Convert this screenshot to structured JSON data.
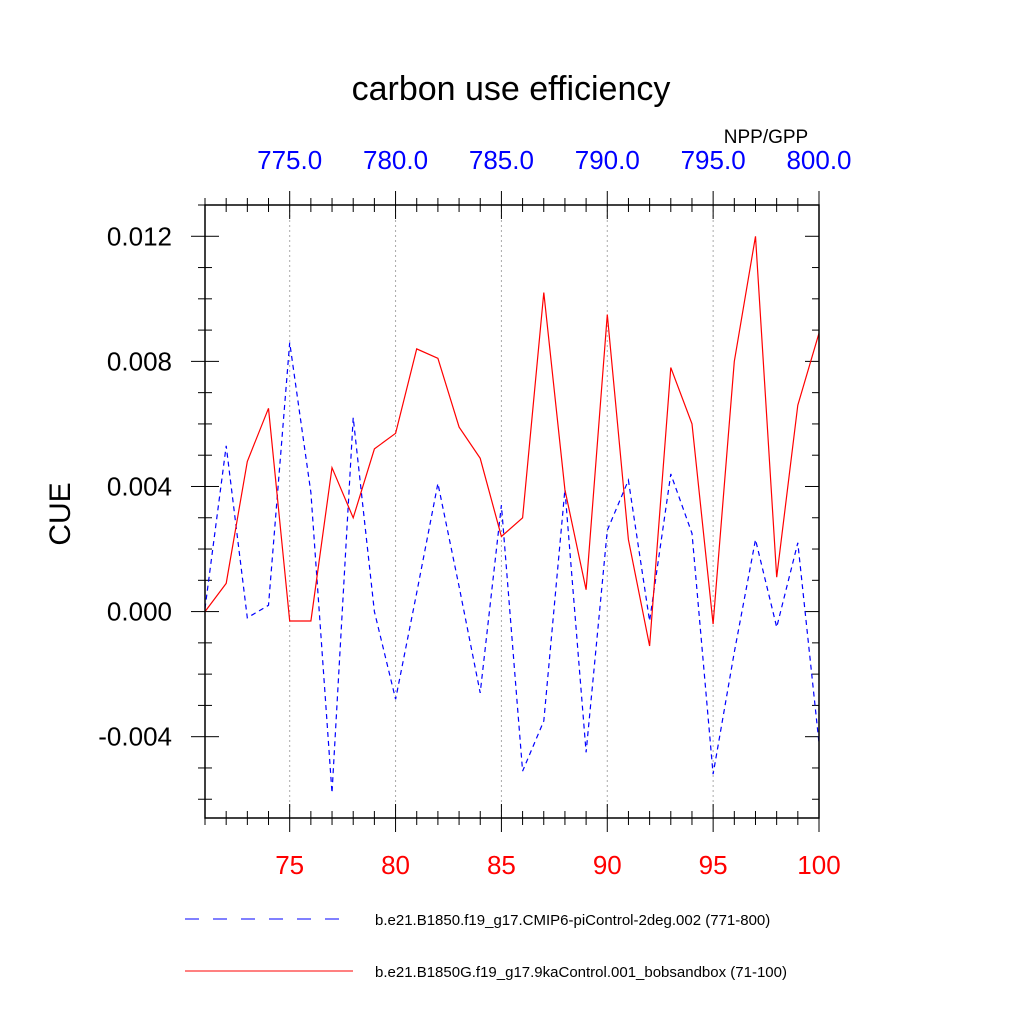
{
  "chart_data": {
    "type": "line",
    "title": "carbon use efficiency",
    "subtitle": "NPP/GPP",
    "ylabel": "CUE",
    "ylim": [
      -0.0066,
      0.013
    ],
    "y_ticks": [
      {
        "value": 0.012,
        "label": "0.012"
      },
      {
        "value": 0.008,
        "label": "0.008"
      },
      {
        "value": 0.004,
        "label": "0.004"
      },
      {
        "value": 0.0,
        "label": "0.000"
      },
      {
        "value": -0.004,
        "label": "-0.004"
      }
    ],
    "y_minor_step": 0.001,
    "x_bottom": {
      "range": [
        71,
        100
      ],
      "ticks": [
        {
          "value": 75,
          "label": "75"
        },
        {
          "value": 80,
          "label": "80"
        },
        {
          "value": 85,
          "label": "85"
        },
        {
          "value": 90,
          "label": "90"
        },
        {
          "value": 95,
          "label": "95"
        },
        {
          "value": 100,
          "label": "100"
        }
      ],
      "color": "#ff0000"
    },
    "x_top": {
      "range": [
        771,
        800
      ],
      "ticks": [
        {
          "value": 775,
          "label": "775.0"
        },
        {
          "value": 780,
          "label": "780.0"
        },
        {
          "value": 785,
          "label": "785.0"
        },
        {
          "value": 790,
          "label": "790.0"
        },
        {
          "value": 795,
          "label": "795.0"
        },
        {
          "value": 800,
          "label": "800.0"
        }
      ],
      "color": "#0000ff"
    },
    "series": [
      {
        "name": "b.e21.B1850.f19_g17.CMIP6-piControl-2deg.002 (771-800)",
        "color": "#0000ff",
        "dash": "dashed",
        "axis": "top",
        "x": [
          771,
          772,
          773,
          774,
          775,
          776,
          777,
          778,
          779,
          780,
          781,
          782,
          783,
          784,
          785,
          786,
          787,
          788,
          789,
          790,
          791,
          792,
          793,
          794,
          795,
          796,
          797,
          798,
          799,
          800
        ],
        "values": [
          0.0001,
          0.0053,
          -0.0002,
          0.0002,
          0.0086,
          0.0038,
          -0.0058,
          0.0062,
          0.0,
          -0.0028,
          0.0006,
          0.0041,
          0.0008,
          -0.0026,
          0.0034,
          -0.0051,
          -0.0035,
          0.0039,
          -0.0045,
          0.0026,
          0.0042,
          -0.0003,
          0.0044,
          0.0025,
          -0.0052,
          -0.0013,
          0.0023,
          -0.0005,
          0.0022,
          -0.0042
        ]
      },
      {
        "name": "b.e21.B1850G.f19_g17.9kaControl.001_bobsandbox (71-100)",
        "color": "#ff0000",
        "dash": "solid",
        "axis": "bottom",
        "x": [
          71,
          72,
          73,
          74,
          75,
          76,
          77,
          78,
          79,
          80,
          81,
          82,
          83,
          84,
          85,
          86,
          87,
          88,
          89,
          90,
          91,
          92,
          93,
          94,
          95,
          96,
          97,
          98,
          99,
          100
        ],
        "values": [
          0.0,
          0.0009,
          0.0048,
          0.0065,
          -0.0003,
          -0.0003,
          0.0046,
          0.003,
          0.0052,
          0.0057,
          0.0084,
          0.0081,
          0.0059,
          0.0049,
          0.0024,
          0.003,
          0.0102,
          0.0039,
          0.0007,
          0.0095,
          0.0023,
          -0.0011,
          0.0078,
          0.006,
          -0.0004,
          0.008,
          0.012,
          0.0011,
          0.0066,
          0.0089
        ]
      }
    ],
    "grid": "vertical dotted at major x ticks",
    "legend": "bottom"
  }
}
